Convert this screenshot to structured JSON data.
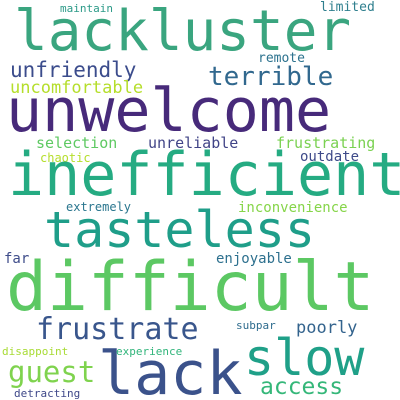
{
  "words": [
    {
      "text": "maintain",
      "color": "#2c9a88"
    },
    {
      "text": "limited",
      "color": "#2f7f8e"
    },
    {
      "text": "lackluster",
      "color": "#3aa57f"
    },
    {
      "text": "unfriendly",
      "color": "#3b4c8c"
    },
    {
      "text": "remote",
      "color": "#2c728e"
    },
    {
      "text": "terrible",
      "color": "#31688e"
    },
    {
      "text": "uncomfortable",
      "color": "#b5de2b"
    },
    {
      "text": "unwelcome",
      "color": "#472a7a"
    },
    {
      "text": "selection",
      "color": "#5ec962"
    },
    {
      "text": "unreliable",
      "color": "#414487"
    },
    {
      "text": "frustrating",
      "color": "#7ad151"
    },
    {
      "text": "chaotic",
      "color": "#b5de2b"
    },
    {
      "text": "outdate",
      "color": "#3e4a89"
    },
    {
      "text": "inefficient",
      "color": "#25ab82"
    },
    {
      "text": "extremely",
      "color": "#2a768e"
    },
    {
      "text": "inconvenience",
      "color": "#86d549"
    },
    {
      "text": "tasteless",
      "color": "#1f9e89"
    },
    {
      "text": "far",
      "color": "#3e4c8a"
    },
    {
      "text": "enjoyable",
      "color": "#2d708e"
    },
    {
      "text": "difficult",
      "color": "#5cc863"
    },
    {
      "text": "frustrate",
      "color": "#39568c"
    },
    {
      "text": "poorly",
      "color": "#33638d"
    },
    {
      "text": "guest",
      "color": "#7fd34e"
    },
    {
      "text": "slow",
      "color": "#1fa088"
    },
    {
      "text": "subpar",
      "color": "#2f6c8e"
    },
    {
      "text": "lack",
      "color": "#3b528b"
    },
    {
      "text": "disappoint",
      "color": "#a8db34"
    },
    {
      "text": "experience",
      "color": "#31b57b"
    },
    {
      "text": "access",
      "color": "#35b779"
    },
    {
      "text": "detracting",
      "color": "#3f4889"
    }
  ]
}
